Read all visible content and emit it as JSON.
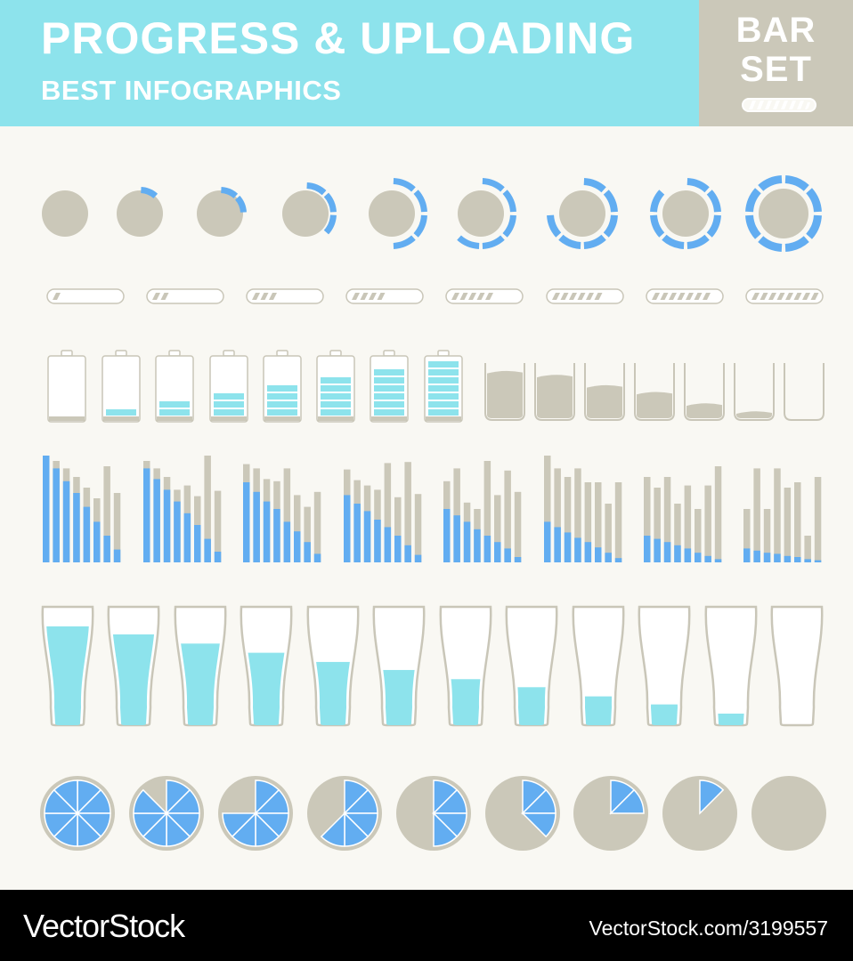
{
  "header": {
    "title": "PROGRESS & UPLOADING",
    "subtitle": "BEST INFOGRAPHICS",
    "badge_line1": "BAR",
    "badge_line2": "SET"
  },
  "footer": {
    "brand": "VectorStock",
    "credit": "VectorStock.com/3199557"
  },
  "colors": {
    "header_bg": "#8de3ec",
    "badge_bg": "#cbc8b9",
    "page_bg": "#f9f8f3",
    "blue": "#62adf1",
    "cyan": "#8de3ec",
    "gray": "#cbc8b9",
    "outline": "#c9c6b8",
    "footer_bg": "#000000"
  },
  "rows": {
    "ring_progress": [
      0,
      1,
      2,
      3,
      4,
      5,
      6,
      7,
      8
    ],
    "ring_segments": 8,
    "loading_bars": [
      1,
      2,
      3,
      4,
      5,
      6,
      7,
      8
    ],
    "loading_stripes": 8,
    "batteries": [
      0,
      1,
      2,
      3,
      4,
      5,
      6,
      7
    ],
    "battery_cells": 7,
    "beakers": [
      0.85,
      0.78,
      0.6,
      0.48,
      0.28,
      0.14,
      0
    ],
    "bar_chart_groups": [
      {
        "gray": [
          1.0,
          0.95,
          0.88,
          0.8,
          0.7,
          0.6,
          0.9,
          0.65
        ],
        "blue": [
          1.0,
          0.88,
          0.76,
          0.65,
          0.52,
          0.38,
          0.25,
          0.12
        ]
      },
      {
        "gray": [
          0.95,
          0.88,
          0.8,
          0.68,
          0.72,
          0.62,
          1.0,
          0.67
        ],
        "blue": [
          0.88,
          0.78,
          0.68,
          0.57,
          0.46,
          0.35,
          0.22,
          0.1
        ]
      },
      {
        "gray": [
          0.92,
          0.88,
          0.78,
          0.76,
          0.88,
          0.63,
          0.52,
          0.66
        ],
        "blue": [
          0.75,
          0.66,
          0.57,
          0.5,
          0.38,
          0.29,
          0.19,
          0.08
        ]
      },
      {
        "gray": [
          0.87,
          0.77,
          0.72,
          0.68,
          0.93,
          0.61,
          0.94,
          0.64
        ],
        "blue": [
          0.63,
          0.55,
          0.48,
          0.4,
          0.33,
          0.25,
          0.16,
          0.07
        ]
      },
      {
        "gray": [
          0.76,
          0.88,
          0.56,
          0.5,
          0.95,
          0.63,
          0.86,
          0.66
        ],
        "blue": [
          0.5,
          0.44,
          0.38,
          0.31,
          0.25,
          0.19,
          0.13,
          0.05
        ]
      },
      {
        "gray": [
          1.0,
          0.88,
          0.8,
          0.88,
          0.75,
          0.75,
          0.55,
          0.75
        ],
        "blue": [
          0.38,
          0.33,
          0.28,
          0.23,
          0.19,
          0.14,
          0.09,
          0.04
        ]
      },
      {
        "gray": [
          0.8,
          0.7,
          0.8,
          0.55,
          0.72,
          0.5,
          0.72,
          0.9
        ],
        "blue": [
          0.25,
          0.22,
          0.19,
          0.16,
          0.13,
          0.09,
          0.06,
          0.03
        ]
      },
      {
        "gray": [
          0.5,
          0.88,
          0.5,
          0.88,
          0.7,
          0.75,
          0.25,
          0.8
        ],
        "blue": [
          0.13,
          0.11,
          0.09,
          0.08,
          0.06,
          0.05,
          0.03,
          0.02
        ]
      }
    ],
    "glasses": [
      0.83,
      0.76,
      0.68,
      0.6,
      0.52,
      0.45,
      0.37,
      0.3,
      0.22,
      0.15,
      0.07,
      0
    ],
    "pies": [
      8,
      7,
      6,
      5,
      4,
      3,
      2,
      1,
      0
    ],
    "pie_slices": 8
  }
}
